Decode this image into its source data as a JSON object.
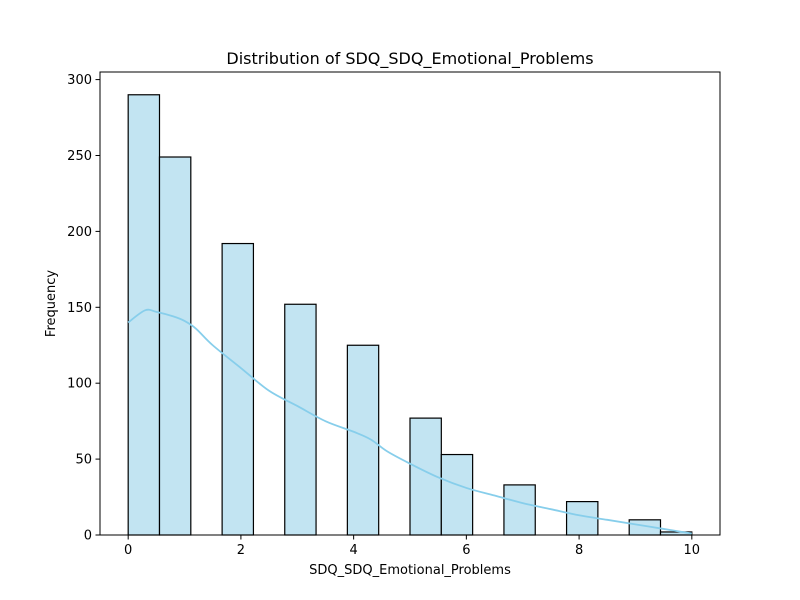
{
  "chart_data": {
    "type": "bar",
    "title": "Distribution of SDQ_SDQ_Emotional_Problems",
    "xlabel": "SDQ_SDQ_Emotional_Problems",
    "ylabel": "Frequency",
    "xlim": [
      -0.5,
      10.5
    ],
    "ylim": [
      0,
      305
    ],
    "xticks": [
      0,
      2,
      4,
      6,
      8,
      10
    ],
    "yticks": [
      0,
      50,
      100,
      150,
      200,
      250,
      300
    ],
    "bin_edges": [
      0,
      0.5556,
      1.1111,
      1.6667,
      2.2222,
      2.7778,
      3.3333,
      3.8889,
      4.4444,
      5.0,
      5.5556,
      6.1111,
      6.6667,
      7.2222,
      7.7778,
      8.3333,
      8.8889,
      9.4444,
      10.0
    ],
    "values": [
      290,
      249,
      0,
      192,
      0,
      152,
      0,
      125,
      0,
      77,
      53,
      0,
      33,
      0,
      22,
      0,
      10,
      2
    ],
    "kde": {
      "x": [
        0,
        0.3,
        0.5,
        0.8,
        1.0,
        1.2,
        1.5,
        2.0,
        2.5,
        3.0,
        3.5,
        4.0,
        4.3,
        4.6,
        5.0,
        5.5,
        6.0,
        6.5,
        7.0,
        7.5,
        8.0,
        8.5,
        9.0,
        9.5,
        10.0
      ],
      "y": [
        140,
        148,
        147,
        144,
        141,
        136,
        125,
        110,
        95,
        85,
        75,
        68,
        63,
        55,
        47,
        38,
        31,
        26,
        21,
        17,
        13,
        10,
        7,
        4,
        1
      ]
    },
    "colors": {
      "bar_fill": "#c2e4f2",
      "bar_stroke": "#000000",
      "kde_line": "#87ceeb"
    },
    "grid": false,
    "legend": "none"
  }
}
